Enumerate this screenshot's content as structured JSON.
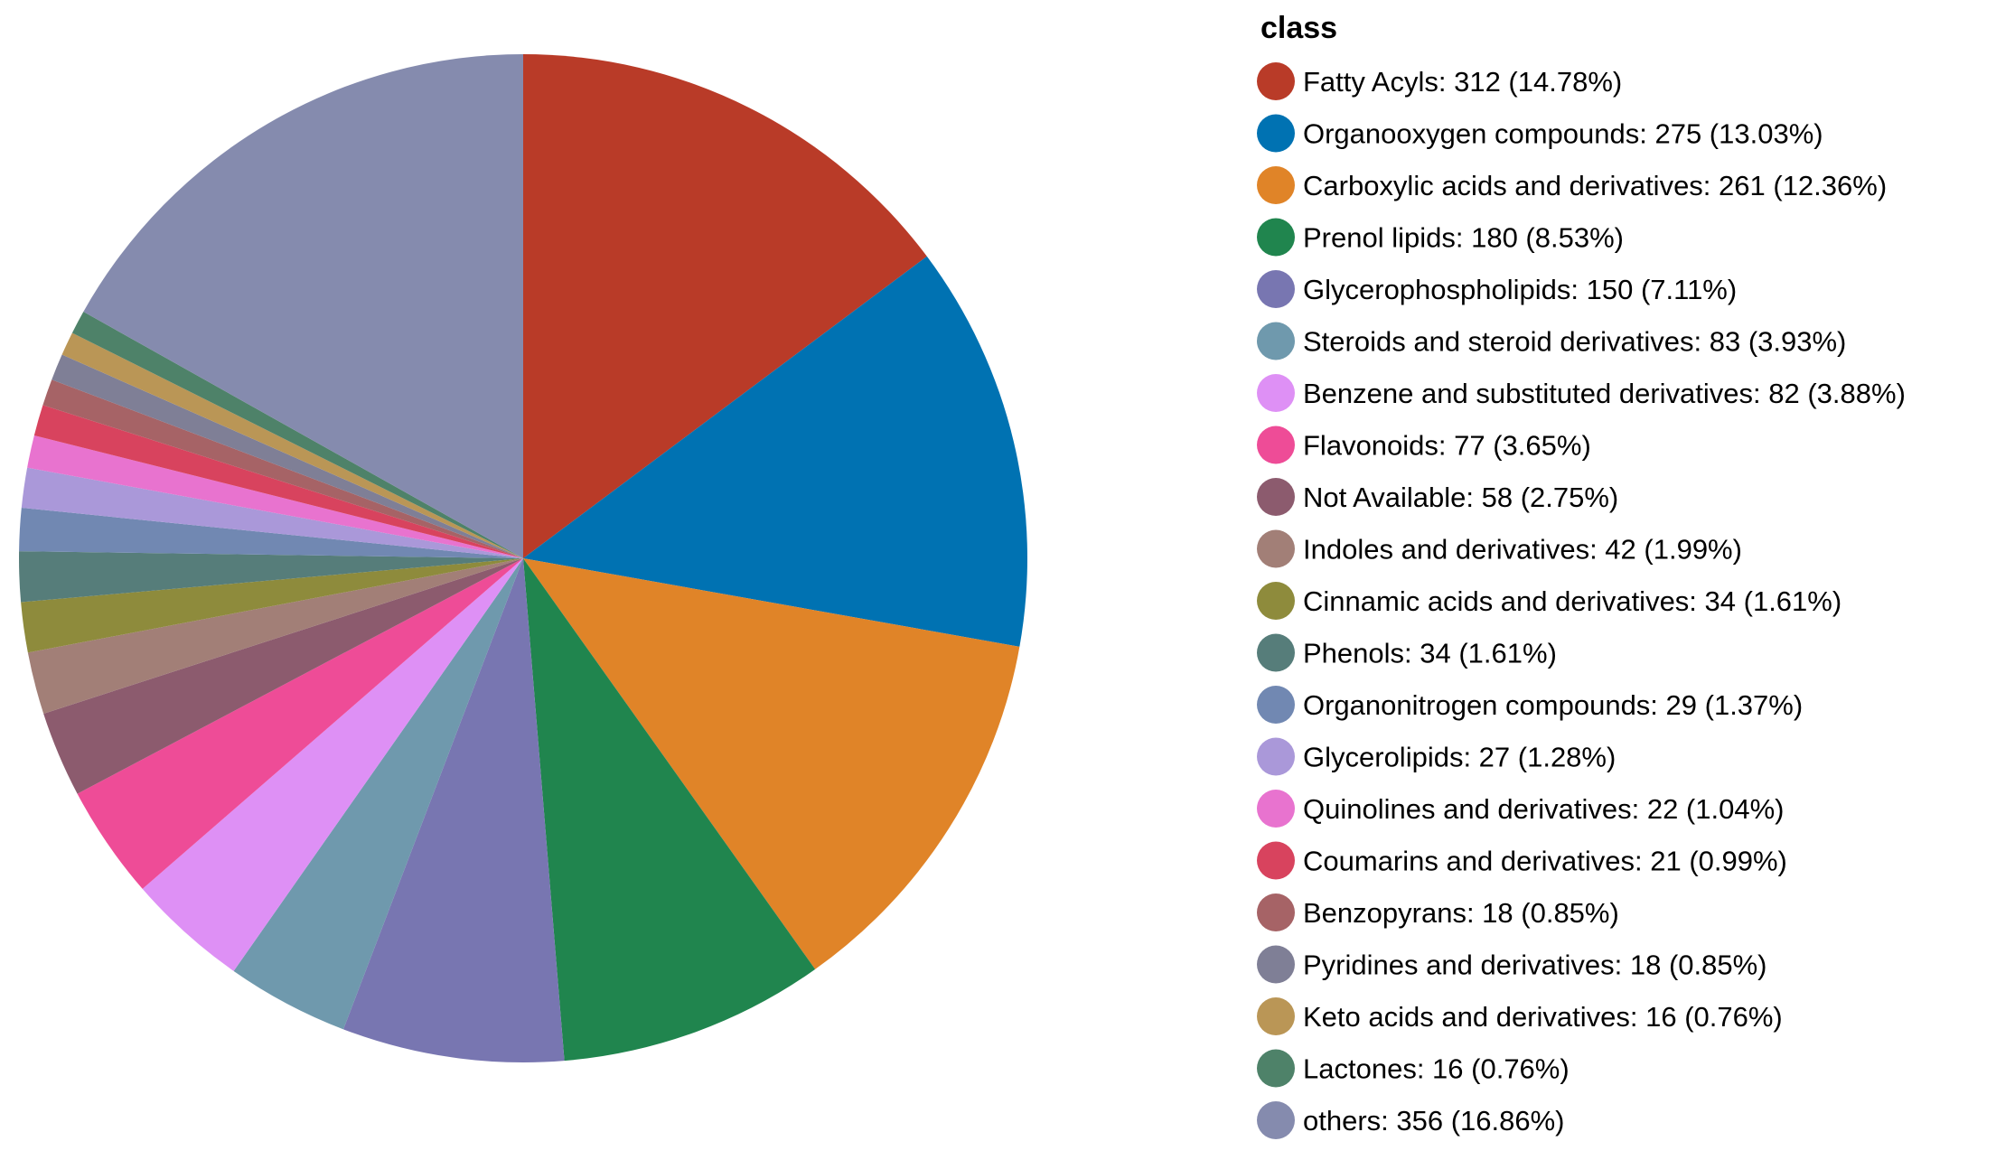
{
  "chart_data": {
    "type": "pie",
    "title": "",
    "legend_title": "class",
    "legend_position": "right",
    "start_angle": "12 o'clock",
    "direction": "clockwise",
    "slices": [
      {
        "label": "Fatty Acyls: 312 (14.78%)",
        "category": "Fatty Acyls",
        "value": 312,
        "percent": 14.78,
        "color": "#B93B28"
      },
      {
        "label": "Organooxygen compounds: 275 (13.03%)",
        "category": "Organooxygen compounds",
        "value": 275,
        "percent": 13.03,
        "color": "#0072B2"
      },
      {
        "label": "Carboxylic acids and derivatives: 261 (12.36%)",
        "category": "Carboxylic acids and derivatives",
        "value": 261,
        "percent": 12.36,
        "color": "#E08428"
      },
      {
        "label": "Prenol lipids: 180 (8.53%)",
        "category": "Prenol lipids",
        "value": 180,
        "percent": 8.53,
        "color": "#20854E"
      },
      {
        "label": "Glycerophospholipids: 150 (7.11%)",
        "category": "Glycerophospholipids",
        "value": 150,
        "percent": 7.11,
        "color": "#7876B1"
      },
      {
        "label": "Steroids and steroid derivatives: 83 (3.93%)",
        "category": "Steroids and steroid derivatives",
        "value": 83,
        "percent": 3.93,
        "color": "#6F99AD"
      },
      {
        "label": "Benzene and substituted derivatives: 82 (3.88%)",
        "category": "Benzene and substituted derivatives",
        "value": 82,
        "percent": 3.88,
        "color": "#DE90F5"
      },
      {
        "label": "Flavonoids: 77 (3.65%)",
        "category": "Flavonoids",
        "value": 77,
        "percent": 3.65,
        "color": "#EE4C97"
      },
      {
        "label": "Not Available: 58 (2.75%)",
        "category": "Not Available",
        "value": 58,
        "percent": 2.75,
        "color": "#8C5B6E"
      },
      {
        "label": "Indoles and derivatives: 42 (1.99%)",
        "category": "Indoles and derivatives",
        "value": 42,
        "percent": 1.99,
        "color": "#A27F77"
      },
      {
        "label": "Cinnamic acids and derivatives: 34 (1.61%)",
        "category": "Cinnamic acids and derivatives",
        "value": 34,
        "percent": 1.61,
        "color": "#8E8B3C"
      },
      {
        "label": "Phenols: 34 (1.61%)",
        "category": "Phenols",
        "value": 34,
        "percent": 1.61,
        "color": "#567D7A"
      },
      {
        "label": "Organonitrogen compounds: 29 (1.37%)",
        "category": "Organonitrogen compounds",
        "value": 29,
        "percent": 1.37,
        "color": "#7188B2"
      },
      {
        "label": "Glycerolipids: 27 (1.28%)",
        "category": "Glycerolipids",
        "value": 27,
        "percent": 1.28,
        "color": "#AA98D9"
      },
      {
        "label": "Quinolines and derivatives: 22 (1.04%)",
        "category": "Quinolines and derivatives",
        "value": 22,
        "percent": 1.04,
        "color": "#E873CF"
      },
      {
        "label": "Coumarins and derivatives: 21 (0.99%)",
        "category": "Coumarins and derivatives",
        "value": 21,
        "percent": 0.99,
        "color": "#D8435E"
      },
      {
        "label": "Benzopyrans: 18 (0.85%)",
        "category": "Benzopyrans",
        "value": 18,
        "percent": 0.85,
        "color": "#A66366"
      },
      {
        "label": "Pyridines and derivatives: 18 (0.85%)",
        "category": "Pyridines and derivatives",
        "value": 18,
        "percent": 0.85,
        "color": "#7F7F96"
      },
      {
        "label": "Keto acids and derivatives: 16 (0.76%)",
        "category": "Keto acids and derivatives",
        "value": 16,
        "percent": 0.76,
        "color": "#BA9656"
      },
      {
        "label": "Lactones: 16 (0.76%)",
        "category": "Lactones",
        "value": 16,
        "percent": 0.76,
        "color": "#4E8269"
      },
      {
        "label": "others: 356 (16.86%)",
        "category": "others",
        "value": 356,
        "percent": 16.86,
        "color": "#858BAE"
      }
    ]
  }
}
